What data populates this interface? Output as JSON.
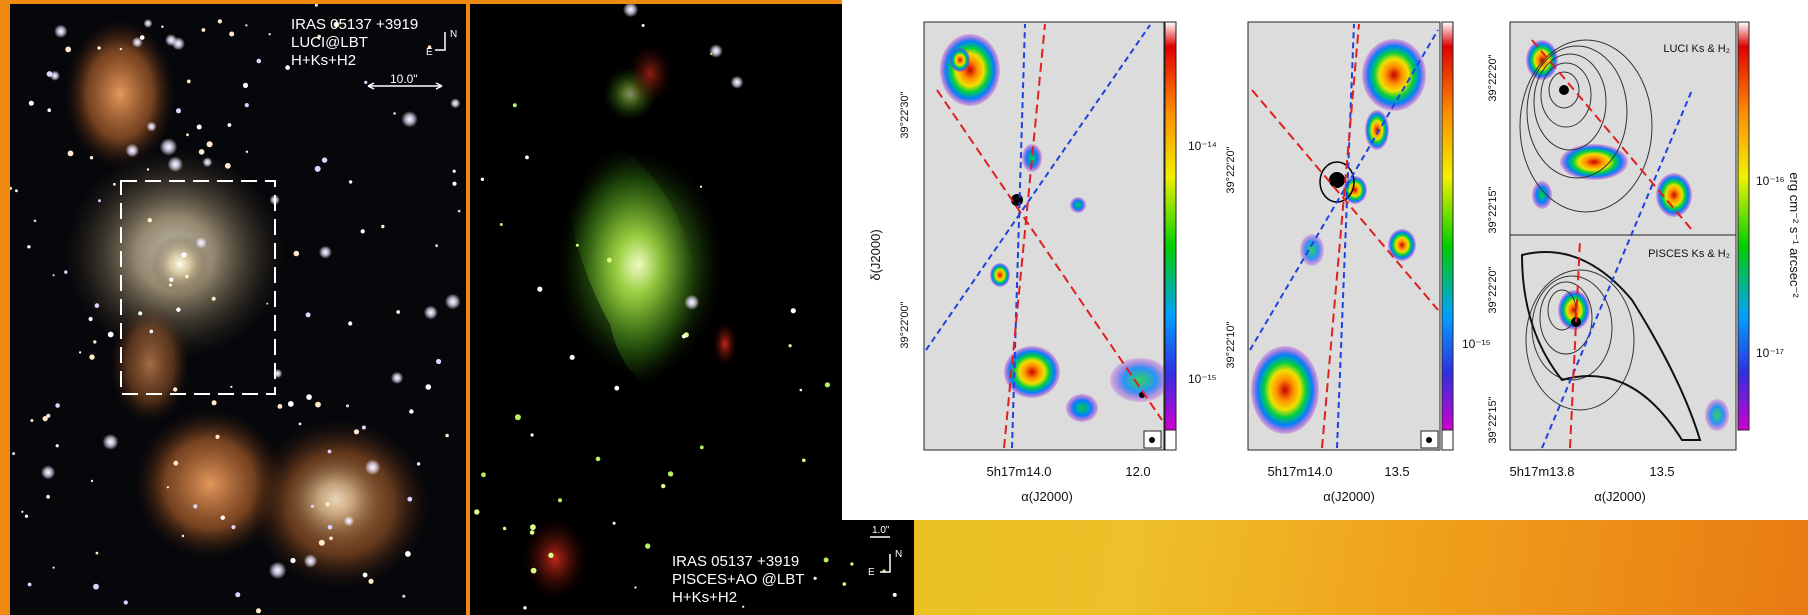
{
  "left_panel": {
    "label_lines": [
      "IRAS 05137 +3919",
      "LUCI@LBT",
      "H+Ks+H2"
    ],
    "compass": {
      "north": "N",
      "east": "E"
    },
    "scale_label": "10.0\""
  },
  "middle_panel": {
    "label_lines": [
      "IRAS 05137 +3919",
      "PISCES+AO @LBT",
      "H+Ks+H2"
    ],
    "compass": {
      "north": "N",
      "east": "E"
    },
    "scale_label": "1.0\""
  },
  "plots": {
    "plot1": {
      "ylabel": "δ(J2000)",
      "xlabel": "α(J2000)",
      "yticks": [
        "39°22'30\"",
        "39°22'00\""
      ],
      "xticks": [
        "5h17m14.0",
        "12.0"
      ],
      "colorbar_ticks": [
        "10⁻¹⁴",
        "10⁻¹⁵"
      ]
    },
    "plot2": {
      "xlabel": "α(J2000)",
      "yticks": [
        "39°22'20\"",
        "39°22'10\""
      ],
      "xticks": [
        "5h17m14.0",
        "13.5"
      ],
      "colorbar_ticks": [
        "10⁻¹⁵"
      ]
    },
    "plot3": {
      "xlabel": "α(J2000)",
      "yticks_top": [
        "39°22'20\"",
        "39°22'15\""
      ],
      "yticks_bottom": [
        "39°22'20\"",
        "39°22'15\""
      ],
      "xticks": [
        "5h17m13.8",
        "13.5"
      ],
      "label_top": "LUCI Ks & H₂",
      "label_bottom": "PISCES Ks & H₂",
      "colorbar_ticks": [
        "10⁻¹⁶",
        "10⁻¹⁷"
      ],
      "colorbar_unit": "erg cm⁻² s⁻¹ arcsec⁻²"
    }
  }
}
